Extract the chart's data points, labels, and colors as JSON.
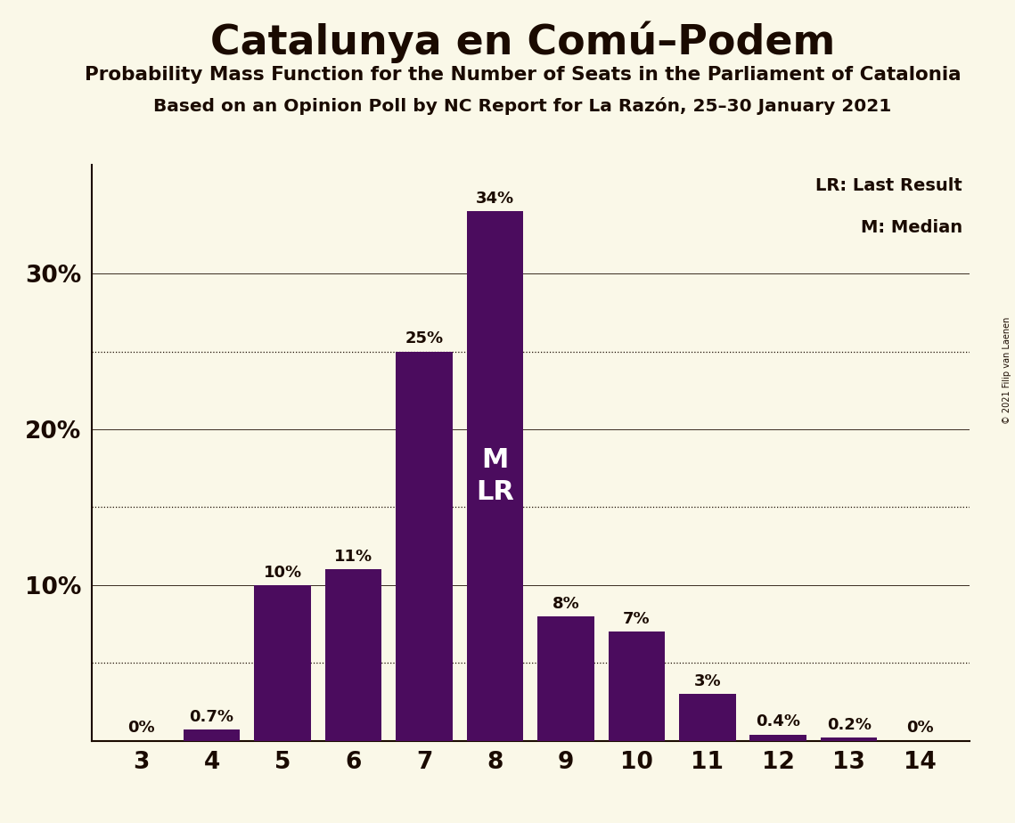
{
  "title": "Catalunya en Comú–Podem",
  "subtitle1": "Probability Mass Function for the Number of Seats in the Parliament of Catalonia",
  "subtitle2": "Based on an Opinion Poll by NC Report for La Razón, 25–30 January 2021",
  "copyright": "© 2021 Filip van Laenen",
  "categories": [
    3,
    4,
    5,
    6,
    7,
    8,
    9,
    10,
    11,
    12,
    13,
    14
  ],
  "values": [
    0.0,
    0.7,
    10.0,
    11.0,
    25.0,
    34.0,
    8.0,
    7.0,
    3.0,
    0.4,
    0.2,
    0.0
  ],
  "bar_color": "#4b0c5e",
  "background_color": "#faf8e8",
  "text_color": "#1a0a00",
  "bar_labels": [
    "0%",
    "0.7%",
    "10%",
    "11%",
    "25%",
    "34%",
    "8%",
    "7%",
    "3%",
    "0.4%",
    "0.2%",
    "0%"
  ],
  "median_bar": 8,
  "last_result_bar": 8,
  "annotation_text": "M\nLR",
  "legend_lr": "LR: Last Result",
  "legend_m": "M: Median",
  "ylim": [
    0,
    37
  ],
  "dotted_hlines": [
    5,
    15,
    25
  ],
  "solid_hlines": [
    10,
    20,
    30
  ]
}
